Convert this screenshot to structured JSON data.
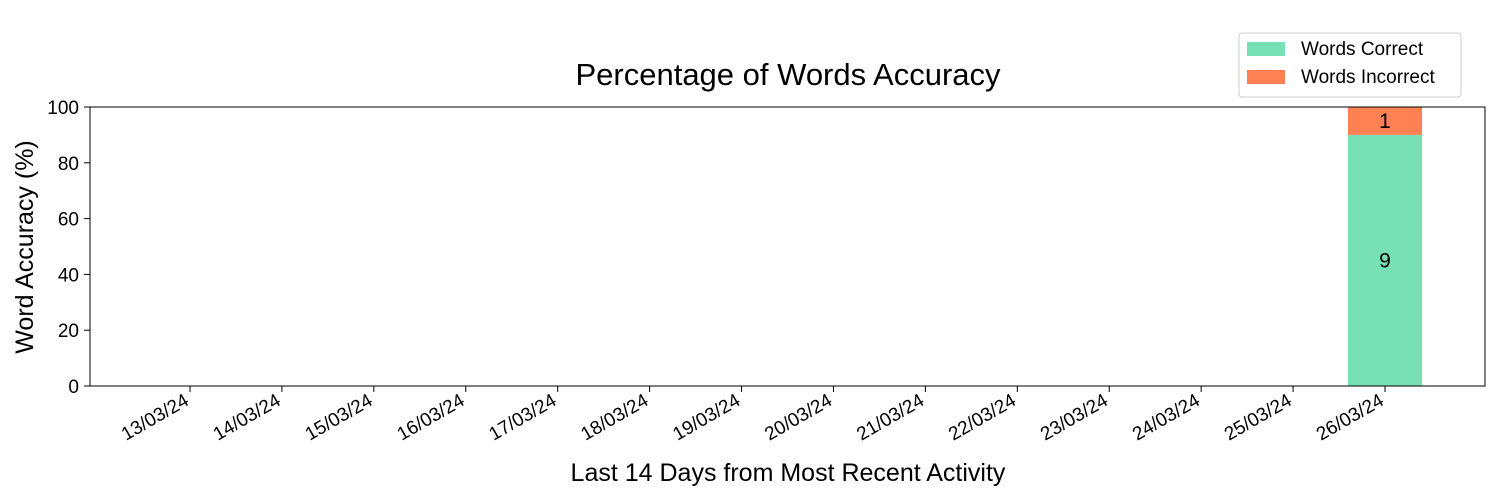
{
  "chart_data": {
    "type": "bar",
    "stacked": true,
    "title": "Percentage of Words Accuracy",
    "xlabel": "Last 14 Days from Most Recent Activity",
    "ylabel": "Word Accuracy (%)",
    "ylim": [
      0,
      100
    ],
    "yticks": [
      0,
      20,
      40,
      60,
      80,
      100
    ],
    "categories": [
      "13/03/24",
      "14/03/24",
      "15/03/24",
      "16/03/24",
      "17/03/24",
      "18/03/24",
      "19/03/24",
      "20/03/24",
      "21/03/24",
      "22/03/24",
      "23/03/24",
      "24/03/24",
      "25/03/24",
      "26/03/24"
    ],
    "series": [
      {
        "name": "Words Correct",
        "color": "#77e0b5",
        "values": [
          0,
          0,
          0,
          0,
          0,
          0,
          0,
          0,
          0,
          0,
          0,
          0,
          0,
          90
        ],
        "labels": [
          "",
          "",
          "",
          "",
          "",
          "",
          "",
          "",
          "",
          "",
          "",
          "",
          "",
          "9"
        ]
      },
      {
        "name": "Words Incorrect",
        "color": "#fe8153",
        "values": [
          0,
          0,
          0,
          0,
          0,
          0,
          0,
          0,
          0,
          0,
          0,
          0,
          0,
          10
        ],
        "labels": [
          "",
          "",
          "",
          "",
          "",
          "",
          "",
          "",
          "",
          "",
          "",
          "",
          "",
          "1"
        ]
      }
    ],
    "legend_position": "top-right",
    "grid": false
  }
}
